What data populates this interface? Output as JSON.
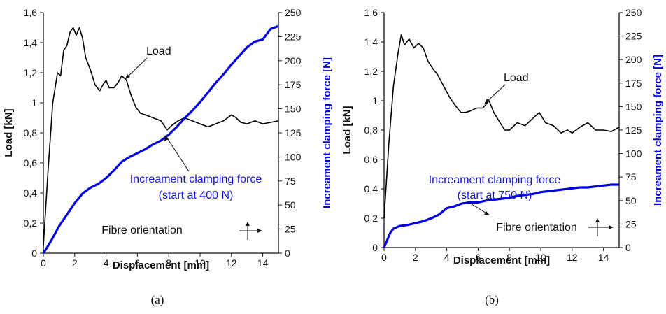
{
  "chart_data": [
    {
      "type": "line",
      "caption": "(a)",
      "xlabel": "Displacement [mm]",
      "ylabel": "Load [kN]",
      "ylabel_right": "Increament clamping force [N]",
      "xlim": [
        0,
        15
      ],
      "ylim": [
        0,
        1.6
      ],
      "ylim_right": [
        0,
        250
      ],
      "x_ticks": [
        "0",
        "2",
        "4",
        "6",
        "8",
        "10",
        "12",
        "14"
      ],
      "y_ticks": [
        "0",
        "0,2",
        "0,4",
        "0,6",
        "0,8",
        "1",
        "1,2",
        "1,4",
        "1,6"
      ],
      "y_right_ticks": [
        "0",
        "25",
        "50",
        "75",
        "100",
        "125",
        "150",
        "175",
        "200",
        "225",
        "250"
      ],
      "grid": false,
      "series": [
        {
          "name": "Load",
          "axis": "left",
          "color": "#000000",
          "x": [
            0,
            0.3,
            0.6,
            0.9,
            1.1,
            1.3,
            1.5,
            1.7,
            1.9,
            2.1,
            2.3,
            2.5,
            2.7,
            3.0,
            3.3,
            3.6,
            3.8,
            4.0,
            4.2,
            4.5,
            4.8,
            5.0,
            5.3,
            5.6,
            5.9,
            6.2,
            6.5,
            7.0,
            7.5,
            7.9,
            8.2,
            8.6,
            9.0,
            9.5,
            10.0,
            10.5,
            11.0,
            11.5,
            12.0,
            12.3,
            12.6,
            13.0,
            13.5,
            14.0,
            14.5,
            15.0
          ],
          "y": [
            0.05,
            0.55,
            1.0,
            1.2,
            1.18,
            1.35,
            1.38,
            1.47,
            1.5,
            1.45,
            1.5,
            1.43,
            1.3,
            1.22,
            1.12,
            1.08,
            1.12,
            1.15,
            1.1,
            1.1,
            1.14,
            1.18,
            1.15,
            1.05,
            0.97,
            0.93,
            0.92,
            0.9,
            0.88,
            0.82,
            0.85,
            0.88,
            0.9,
            0.88,
            0.86,
            0.84,
            0.86,
            0.88,
            0.92,
            0.9,
            0.87,
            0.86,
            0.88,
            0.86,
            0.87,
            0.88
          ]
        },
        {
          "name": "Increament clamping force",
          "axis": "right",
          "color": "#0000e6",
          "x": [
            0,
            0.2,
            0.5,
            1.0,
            1.5,
            2.0,
            2.5,
            3.0,
            3.5,
            4.0,
            4.5,
            5.0,
            5.5,
            6.0,
            6.5,
            7.0,
            7.5,
            8.0,
            8.5,
            9.0,
            9.5,
            10.0,
            10.5,
            11.0,
            11.5,
            12.0,
            12.5,
            13.0,
            13.5,
            14.0,
            14.5,
            15.0
          ],
          "y": [
            0,
            5,
            13,
            28,
            40,
            52,
            62,
            68,
            72,
            78,
            86,
            95,
            100,
            104,
            108,
            113,
            117,
            123,
            131,
            140,
            148,
            157,
            167,
            177,
            186,
            196,
            205,
            214,
            220,
            222,
            233,
            236
          ]
        }
      ],
      "annotations": {
        "load": "Load",
        "clamping_line1": "Increament clamping force",
        "clamping_line2": "(start at 400 N)",
        "fibre": "Fibre orientation"
      }
    },
    {
      "type": "line",
      "caption": "(b)",
      "xlabel": "Displacement [mm]",
      "ylabel": "Load [kN]",
      "ylabel_right": "Increament clamping force [N]",
      "xlim": [
        0,
        15
      ],
      "ylim": [
        0,
        1.6
      ],
      "ylim_right": [
        0,
        250
      ],
      "x_ticks": [
        "0",
        "2",
        "4",
        "6",
        "8",
        "10",
        "12",
        "14"
      ],
      "y_ticks": [
        "0",
        "0,2",
        "0,4",
        "0,6",
        "0,8",
        "1",
        "1,2",
        "1,4",
        "1,6"
      ],
      "y_right_ticks": [
        "0",
        "25",
        "50",
        "75",
        "100",
        "125",
        "150",
        "175",
        "200",
        "225",
        "250"
      ],
      "grid": false,
      "series": [
        {
          "name": "Load",
          "axis": "left",
          "color": "#000000",
          "x": [
            0,
            0.3,
            0.6,
            0.9,
            1.1,
            1.3,
            1.6,
            1.9,
            2.2,
            2.5,
            2.8,
            3.1,
            3.4,
            3.8,
            4.2,
            4.6,
            4.9,
            5.2,
            5.5,
            5.9,
            6.3,
            6.7,
            7.0,
            7.4,
            7.7,
            8.0,
            8.5,
            9.0,
            9.5,
            9.9,
            10.3,
            10.8,
            11.3,
            11.7,
            12.0,
            12.5,
            13.0,
            13.5,
            14.0,
            14.5,
            15.0
          ],
          "y": [
            0.2,
            0.7,
            1.1,
            1.33,
            1.45,
            1.38,
            1.42,
            1.36,
            1.39,
            1.36,
            1.27,
            1.22,
            1.18,
            1.1,
            1.02,
            0.96,
            0.92,
            0.92,
            0.93,
            0.95,
            0.95,
            1.0,
            0.92,
            0.85,
            0.8,
            0.8,
            0.85,
            0.83,
            0.88,
            0.92,
            0.85,
            0.83,
            0.78,
            0.8,
            0.78,
            0.82,
            0.85,
            0.8,
            0.8,
            0.79,
            0.82
          ]
        },
        {
          "name": "Increament clamping force",
          "axis": "right",
          "color": "#0000e6",
          "x": [
            0,
            0.2,
            0.4,
            0.6,
            1.0,
            1.5,
            2.0,
            2.5,
            3.0,
            3.5,
            4.0,
            4.5,
            5.0,
            5.5,
            6.0,
            6.5,
            7.0,
            7.5,
            8.0,
            8.5,
            9.0,
            9.5,
            10.0,
            10.5,
            11.0,
            11.5,
            12.0,
            12.5,
            13.0,
            13.5,
            14.0,
            14.5,
            15.0
          ],
          "y": [
            0,
            8,
            16,
            20,
            23,
            24,
            26,
            28,
            31,
            35,
            42,
            44,
            47,
            48,
            48,
            50,
            51,
            52,
            53,
            55,
            56,
            57,
            59,
            60,
            61,
            62,
            63,
            64,
            64,
            65,
            66,
            67,
            67
          ]
        }
      ],
      "annotations": {
        "load": "Load",
        "clamping_line1": "Increament clamping force",
        "clamping_line2": "(start at 750 N)",
        "fibre": "Fibre orientation"
      }
    }
  ]
}
